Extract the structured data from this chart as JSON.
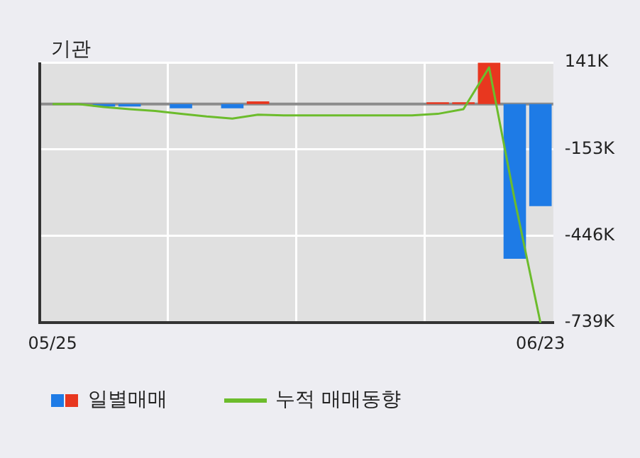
{
  "chart_data": {
    "type": "bar",
    "title": "기관",
    "categories": [
      "05/25",
      null,
      null,
      null,
      null,
      null,
      null,
      null,
      null,
      null,
      null,
      null,
      null,
      null,
      null,
      null,
      null,
      null,
      null,
      "06/23"
    ],
    "series": [
      {
        "name": "일별매매",
        "colors": [
          "#1e7be6",
          "#1e7be6",
          "#1e7be6",
          "#1e7be6",
          "#1e7be6",
          "#1e7be6",
          "#1e7be6",
          "#1e7be6",
          "#e8371f",
          "#1e7be6",
          "#1e7be6",
          "#1e7be6",
          "#1e7be6",
          "#1e7be6",
          "#1e7be6",
          "#e8371f",
          "#e8371f",
          "#e8371f",
          "#1e7be6",
          "#1e7be6"
        ],
        "values": [
          0,
          0,
          -8000,
          -8000,
          0,
          -14000,
          0,
          -14000,
          9000,
          0,
          0,
          0,
          0,
          0,
          0,
          6000,
          6000,
          140000,
          -523000,
          -345000
        ]
      },
      {
        "name": "누적 매매동향",
        "type": "line",
        "color": "#6cbc2c",
        "values": [
          0,
          0,
          -10000,
          -17000,
          -23000,
          -33000,
          -42000,
          -49000,
          -36000,
          -38000,
          -38000,
          -38000,
          -38000,
          -38000,
          -38000,
          -33000,
          -17000,
          124000,
          -325000,
          -739000
        ]
      }
    ],
    "ylim": [
      -739000,
      141000
    ],
    "yticks": [
      {
        "value": 141000,
        "label": "141K"
      },
      {
        "value": -153000,
        "label": "-153K"
      },
      {
        "value": -446000,
        "label": "-446K"
      },
      {
        "value": -739000,
        "label": "-739K"
      }
    ],
    "ref_lines": [
      {
        "axis": "y",
        "value": 0,
        "color": "#8c8c8c"
      }
    ],
    "grid": true,
    "legend": "bottom",
    "marker": "none"
  }
}
